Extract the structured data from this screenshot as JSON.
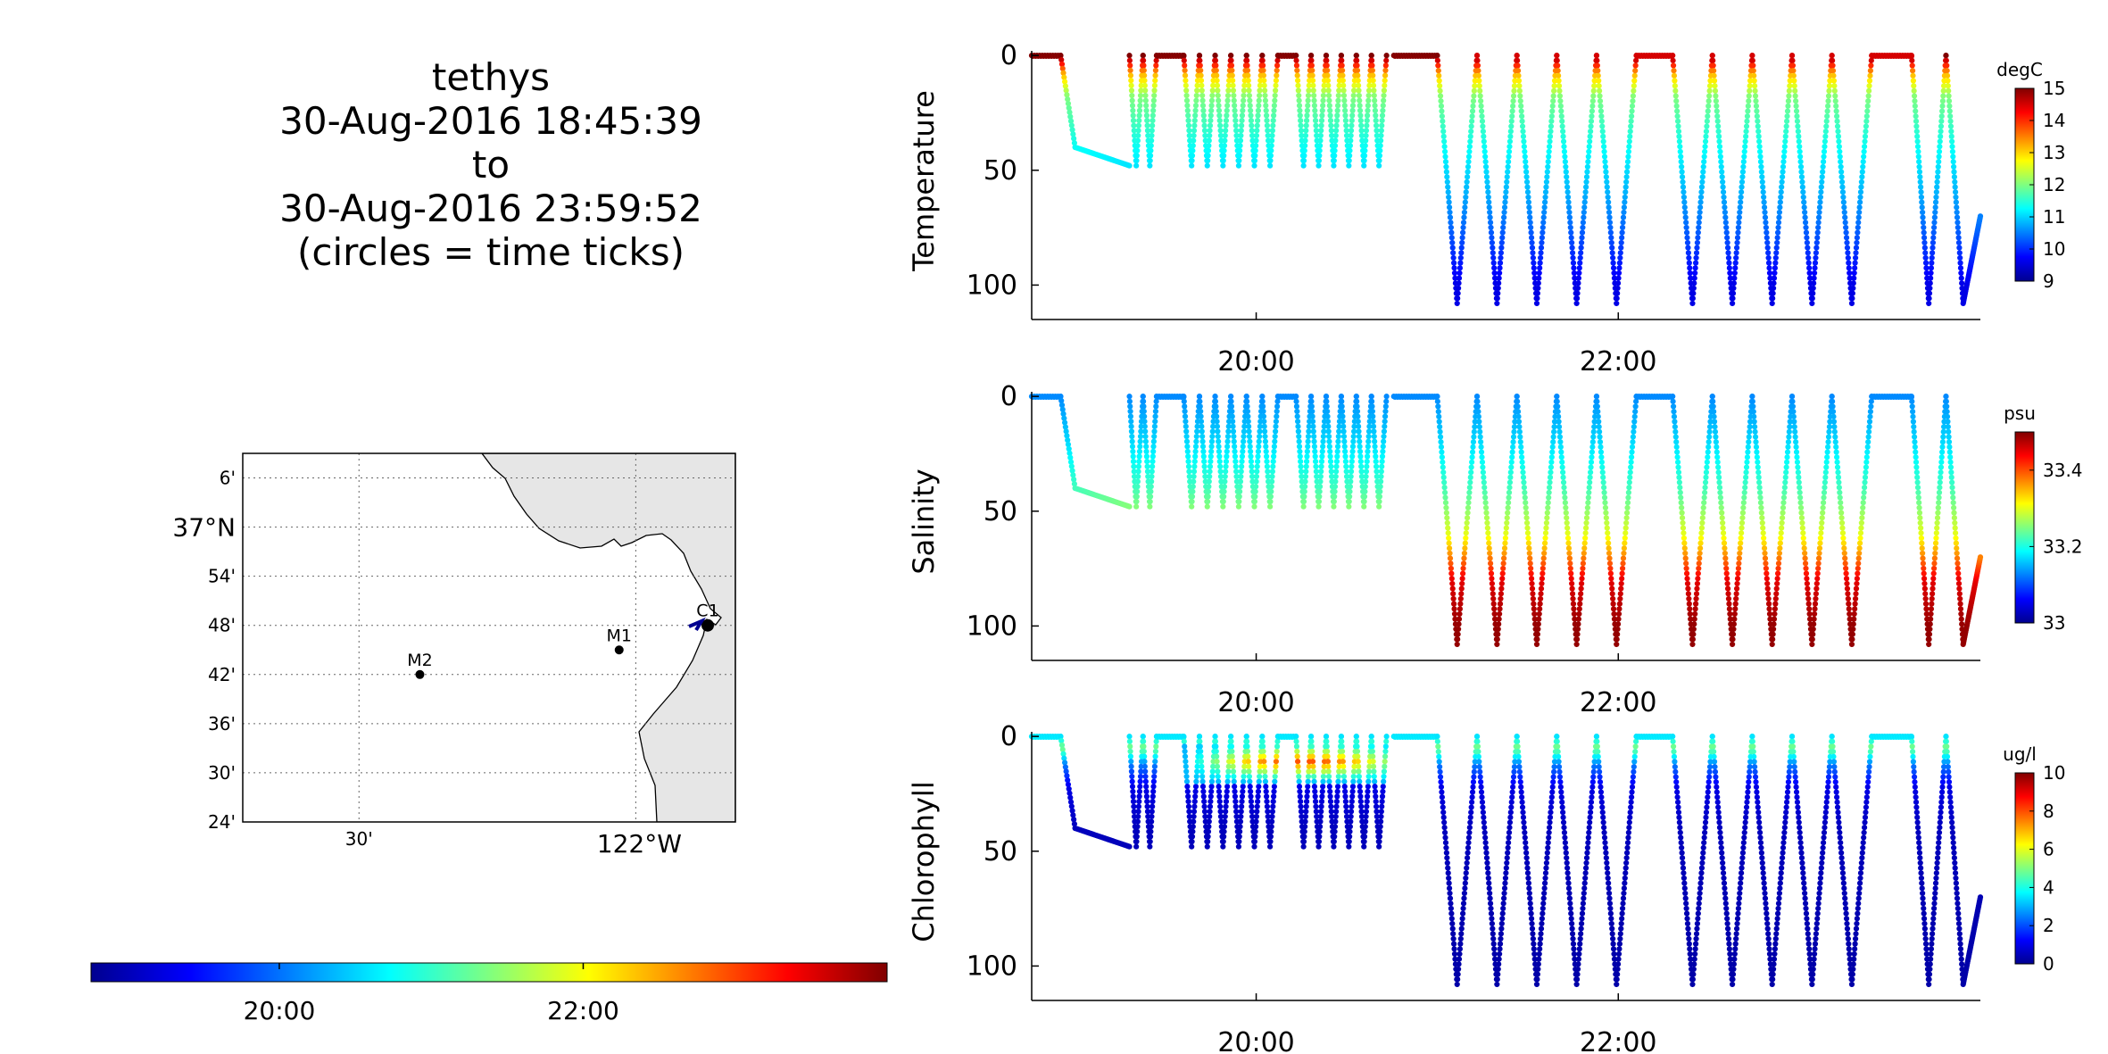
{
  "title": {
    "vehicle": "tethys",
    "start": "30-Aug-2016 18:45:39",
    "to": "to",
    "end": "30-Aug-2016 23:59:52",
    "note": "(circles = time ticks)"
  },
  "map": {
    "lat_labels": [
      "6'",
      "37°N",
      "54'",
      "48'",
      "42'",
      "36'",
      "30'",
      "24'"
    ],
    "lon_labels": [
      "30'",
      "122°W"
    ],
    "land_color": "#e6e6e6",
    "stations": [
      {
        "name": "M2",
        "lon": -122.39,
        "lat": 36.7
      },
      {
        "name": "M1",
        "lon": -122.03,
        "lat": 36.75
      },
      {
        "name": "C1",
        "lon": -121.87,
        "lat": 36.8
      }
    ]
  },
  "time_colorbar": {
    "tick_labels": [
      "20:00",
      "22:00"
    ],
    "range": [
      "18:45:39",
      "23:59:52"
    ]
  },
  "chart_data": [
    {
      "type": "scatter",
      "ylabel": "Temperature",
      "unit": "degC",
      "clim": [
        9,
        15
      ],
      "colorbar_ticks": [
        9,
        10,
        11,
        12,
        13,
        14,
        15
      ],
      "x_tick_labels": [
        "20:00",
        "22:00"
      ],
      "xlim_hours": [
        18.76,
        24.0
      ],
      "ylim_depth_m": [
        115,
        -2
      ],
      "y_ticks": [
        0,
        50,
        100
      ],
      "surface_value": 15.0,
      "bottom_value": 9.6,
      "profile_color_stops": [
        [
          0,
          15.0
        ],
        [
          8,
          13.2
        ],
        [
          18,
          12.0
        ],
        [
          40,
          11.3
        ],
        [
          60,
          10.8
        ],
        [
          80,
          10.2
        ],
        [
          100,
          9.6
        ]
      ],
      "grid": false
    },
    {
      "type": "scatter",
      "ylabel": "Salinity",
      "unit": "psu",
      "clim": [
        33.0,
        33.5
      ],
      "colorbar_ticks": [
        33,
        33.2,
        33.4
      ],
      "x_tick_labels": [
        "20:00",
        "22:00"
      ],
      "xlim_hours": [
        18.76,
        24.0
      ],
      "ylim_depth_m": [
        115,
        -2
      ],
      "y_ticks": [
        0,
        50,
        100
      ],
      "surface_value": 33.13,
      "bottom_value": 33.49,
      "profile_color_stops": [
        [
          0,
          33.13
        ],
        [
          20,
          33.17
        ],
        [
          40,
          33.22
        ],
        [
          60,
          33.3
        ],
        [
          80,
          33.45
        ],
        [
          100,
          33.49
        ]
      ],
      "grid": false
    },
    {
      "type": "scatter",
      "ylabel": "Chlorophyll",
      "unit": "ug/l",
      "clim": [
        0,
        10
      ],
      "colorbar_ticks": [
        0,
        2,
        4,
        6,
        8,
        10
      ],
      "x_tick_labels": [
        "20:00",
        "22:00"
      ],
      "xlim_hours": [
        18.76,
        24.0
      ],
      "ylim_depth_m": [
        115,
        -2
      ],
      "y_ticks": [
        0,
        50,
        100
      ],
      "surface_value": 3.5,
      "bottom_value": 0.4,
      "profile_color_stops": [
        [
          0,
          3.5
        ],
        [
          5,
          5.0
        ],
        [
          12,
          2.5
        ],
        [
          22,
          1.0
        ],
        [
          40,
          0.6
        ],
        [
          100,
          0.4
        ]
      ],
      "grid": false
    }
  ],
  "track": {
    "segments": [
      {
        "kind": "surface",
        "t0": 18.76,
        "t1": 18.92,
        "depth": 0
      },
      {
        "kind": "dive",
        "t0": 18.92,
        "t1": 19.0,
        "d0": 0,
        "d1": 40
      },
      {
        "kind": "level",
        "t0": 19.0,
        "t1": 19.3,
        "d0": 40,
        "d1": 48
      },
      {
        "kind": "yoyo",
        "t0": 19.3,
        "t1": 19.45,
        "count": 2,
        "dmax": 48
      },
      {
        "kind": "surface",
        "t0": 19.45,
        "t1": 19.6,
        "depth": 0
      },
      {
        "kind": "yoyo",
        "t0": 19.6,
        "t1": 20.12,
        "count": 6,
        "dmax": 48
      },
      {
        "kind": "surface",
        "t0": 20.12,
        "t1": 20.22,
        "depth": 0
      },
      {
        "kind": "yoyo",
        "t0": 20.22,
        "t1": 20.72,
        "count": 6,
        "dmax": 48
      },
      {
        "kind": "surface",
        "t0": 20.76,
        "t1": 21.0,
        "depth": 0
      },
      {
        "kind": "yoyo",
        "t0": 21.0,
        "t1": 22.1,
        "count": 5,
        "dmax": 108
      },
      {
        "kind": "surface",
        "t0": 22.1,
        "t1": 22.3,
        "depth": 0
      },
      {
        "kind": "yoyo",
        "t0": 22.3,
        "t1": 23.4,
        "count": 5,
        "dmax": 108
      },
      {
        "kind": "surface",
        "t0": 23.4,
        "t1": 23.62,
        "depth": 0
      },
      {
        "kind": "yoyo",
        "t0": 23.62,
        "t1": 24.0,
        "count": 2,
        "dmax": 108,
        "end_depth": 70
      }
    ]
  }
}
